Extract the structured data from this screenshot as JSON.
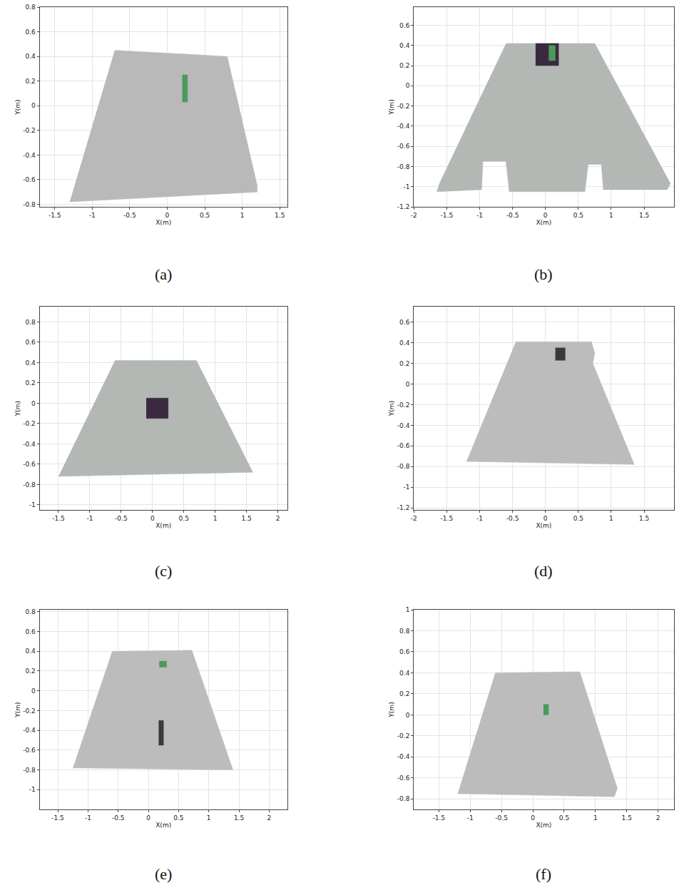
{
  "chart_data": [
    {
      "type": "area",
      "caption": "(a)",
      "x_label": "X(m)",
      "y_label": "Y(m)",
      "xlim": [
        -1.7,
        1.6
      ],
      "ylim": [
        -0.82,
        0.8
      ],
      "xticks": [
        -1.5,
        -1,
        -0.5,
        0,
        0.5,
        1,
        1.5
      ],
      "yticks": [
        -0.8,
        -0.6,
        -0.4,
        -0.2,
        0,
        0.2,
        0.4,
        0.6,
        0.8
      ],
      "grid": true,
      "series": [
        {
          "color": "#b9b9b9",
          "x": [
            -0.7,
            0.8,
            1.2,
            1.2,
            -1.3
          ],
          "y": [
            0.45,
            0.4,
            -0.65,
            -0.7,
            -0.78
          ]
        },
        {
          "color": "#4a9a5a",
          "x": [
            0.2,
            0.27,
            0.27,
            0.2
          ],
          "y": [
            0.03,
            0.03,
            0.25,
            0.25
          ]
        }
      ]
    },
    {
      "type": "area",
      "caption": "(b)",
      "x_label": "X(m)",
      "y_label": "Y(m)",
      "xlim": [
        -2,
        1.95
      ],
      "ylim": [
        -1.2,
        0.78
      ],
      "xticks": [
        -2,
        -1.5,
        -1,
        -0.5,
        0,
        0.5,
        1,
        1.5
      ],
      "yticks": [
        -1.2,
        -1,
        -0.8,
        -0.6,
        -0.4,
        -0.2,
        0,
        0.2,
        0.4,
        0.6
      ],
      "grid": true,
      "series": [
        {
          "color": "#b4b8b4",
          "x": [
            -0.6,
            0.75,
            1.9,
            1.85,
            0.88,
            0.85,
            0.65,
            0.6,
            -0.55,
            -0.6,
            -0.95,
            -0.97,
            -1.65,
            -1.6
          ],
          "y": [
            0.42,
            0.42,
            -0.97,
            -1.03,
            -1.03,
            -0.78,
            -0.78,
            -1.05,
            -1.05,
            -0.75,
            -0.75,
            -1.03,
            -1.05,
            -0.95
          ]
        },
        {
          "color": "#3a2a40",
          "x": [
            -0.15,
            0.2,
            0.2,
            -0.15
          ],
          "y": [
            0.2,
            0.2,
            0.42,
            0.42
          ]
        },
        {
          "color": "#4a9a5a",
          "x": [
            0.05,
            0.15,
            0.15,
            0.05
          ],
          "y": [
            0.25,
            0.25,
            0.4,
            0.4
          ]
        }
      ]
    },
    {
      "type": "area",
      "caption": "(c)",
      "x_label": "X(m)",
      "y_label": "Y(m)",
      "xlim": [
        -1.8,
        2.15
      ],
      "ylim": [
        -1.05,
        0.95
      ],
      "xticks": [
        -1.5,
        -1,
        -0.5,
        0,
        0.5,
        1,
        1.5,
        2
      ],
      "yticks": [
        -1,
        -0.8,
        -0.6,
        -0.4,
        -0.2,
        0,
        0.2,
        0.4,
        0.6,
        0.8
      ],
      "grid": true,
      "series": [
        {
          "color": "#b4b8b4",
          "x": [
            -0.6,
            0.7,
            1.6,
            -1.5
          ],
          "y": [
            0.42,
            0.42,
            -0.68,
            -0.72
          ]
        },
        {
          "color": "#3a2a40",
          "x": [
            -0.1,
            0.25,
            0.25,
            -0.1
          ],
          "y": [
            -0.15,
            -0.15,
            0.05,
            0.05
          ]
        }
      ]
    },
    {
      "type": "area",
      "caption": "(d)",
      "x_label": "X(m)",
      "y_label": "Y(m)",
      "xlim": [
        -2,
        1.95
      ],
      "ylim": [
        -1.22,
        0.75
      ],
      "xticks": [
        -2,
        -1.5,
        -1,
        -0.5,
        0,
        0.5,
        1,
        1.5
      ],
      "yticks": [
        -1.2,
        -1,
        -0.8,
        -0.6,
        -0.4,
        -0.2,
        0,
        0.2,
        0.4,
        0.6
      ],
      "grid": true,
      "series": [
        {
          "color": "#bcbcbc",
          "x": [
            -0.45,
            0.7,
            0.75,
            0.72,
            1.35,
            -1.2
          ],
          "y": [
            0.41,
            0.41,
            0.3,
            0.2,
            -0.78,
            -0.75
          ]
        },
        {
          "color": "#3a3a3a",
          "x": [
            0.15,
            0.3,
            0.3,
            0.15
          ],
          "y": [
            0.23,
            0.23,
            0.35,
            0.35
          ]
        }
      ]
    },
    {
      "type": "area",
      "caption": "(e)",
      "x_label": "X(m)",
      "y_label": "Y(m)",
      "xlim": [
        -1.8,
        2.3
      ],
      "ylim": [
        -1.2,
        0.82
      ],
      "xticks": [
        -1.5,
        -1,
        -0.5,
        0,
        0.5,
        1,
        1.5,
        2
      ],
      "yticks": [
        -1,
        -0.8,
        -0.6,
        -0.4,
        -0.2,
        0,
        0.2,
        0.4,
        0.6,
        0.8
      ],
      "grid": true,
      "series": [
        {
          "color": "#bcbcbc",
          "x": [
            -0.6,
            0.72,
            1.4,
            -1.25
          ],
          "y": [
            0.4,
            0.41,
            -0.8,
            -0.78
          ]
        },
        {
          "color": "#4a9a5a",
          "x": [
            0.18,
            0.3,
            0.3,
            0.18
          ],
          "y": [
            0.24,
            0.24,
            0.3,
            0.3
          ]
        },
        {
          "color": "#3a3a3a",
          "x": [
            0.17,
            0.25,
            0.25,
            0.17
          ],
          "y": [
            -0.55,
            -0.55,
            -0.3,
            -0.3
          ]
        }
      ]
    },
    {
      "type": "area",
      "caption": "(f)",
      "x_label": "X(m)",
      "y_label": "Y(m)",
      "xlim": [
        -1.9,
        2.25
      ],
      "ylim": [
        -0.9,
        1.0
      ],
      "xticks": [
        -1.5,
        -1,
        -0.5,
        0,
        0.5,
        1,
        1.5,
        2
      ],
      "yticks": [
        -0.8,
        -0.6,
        -0.4,
        -0.2,
        0,
        0.2,
        0.4,
        0.6,
        0.8,
        1
      ],
      "grid": true,
      "series": [
        {
          "color": "#bcbcbc",
          "x": [
            -0.6,
            0.75,
            1.35,
            1.3,
            -1.2
          ],
          "y": [
            0.4,
            0.41,
            -0.7,
            -0.78,
            -0.75
          ]
        },
        {
          "color": "#4a9a5a",
          "x": [
            0.17,
            0.25,
            0.25,
            0.17
          ],
          "y": [
            0.0,
            0.0,
            0.1,
            0.1
          ]
        }
      ]
    }
  ]
}
